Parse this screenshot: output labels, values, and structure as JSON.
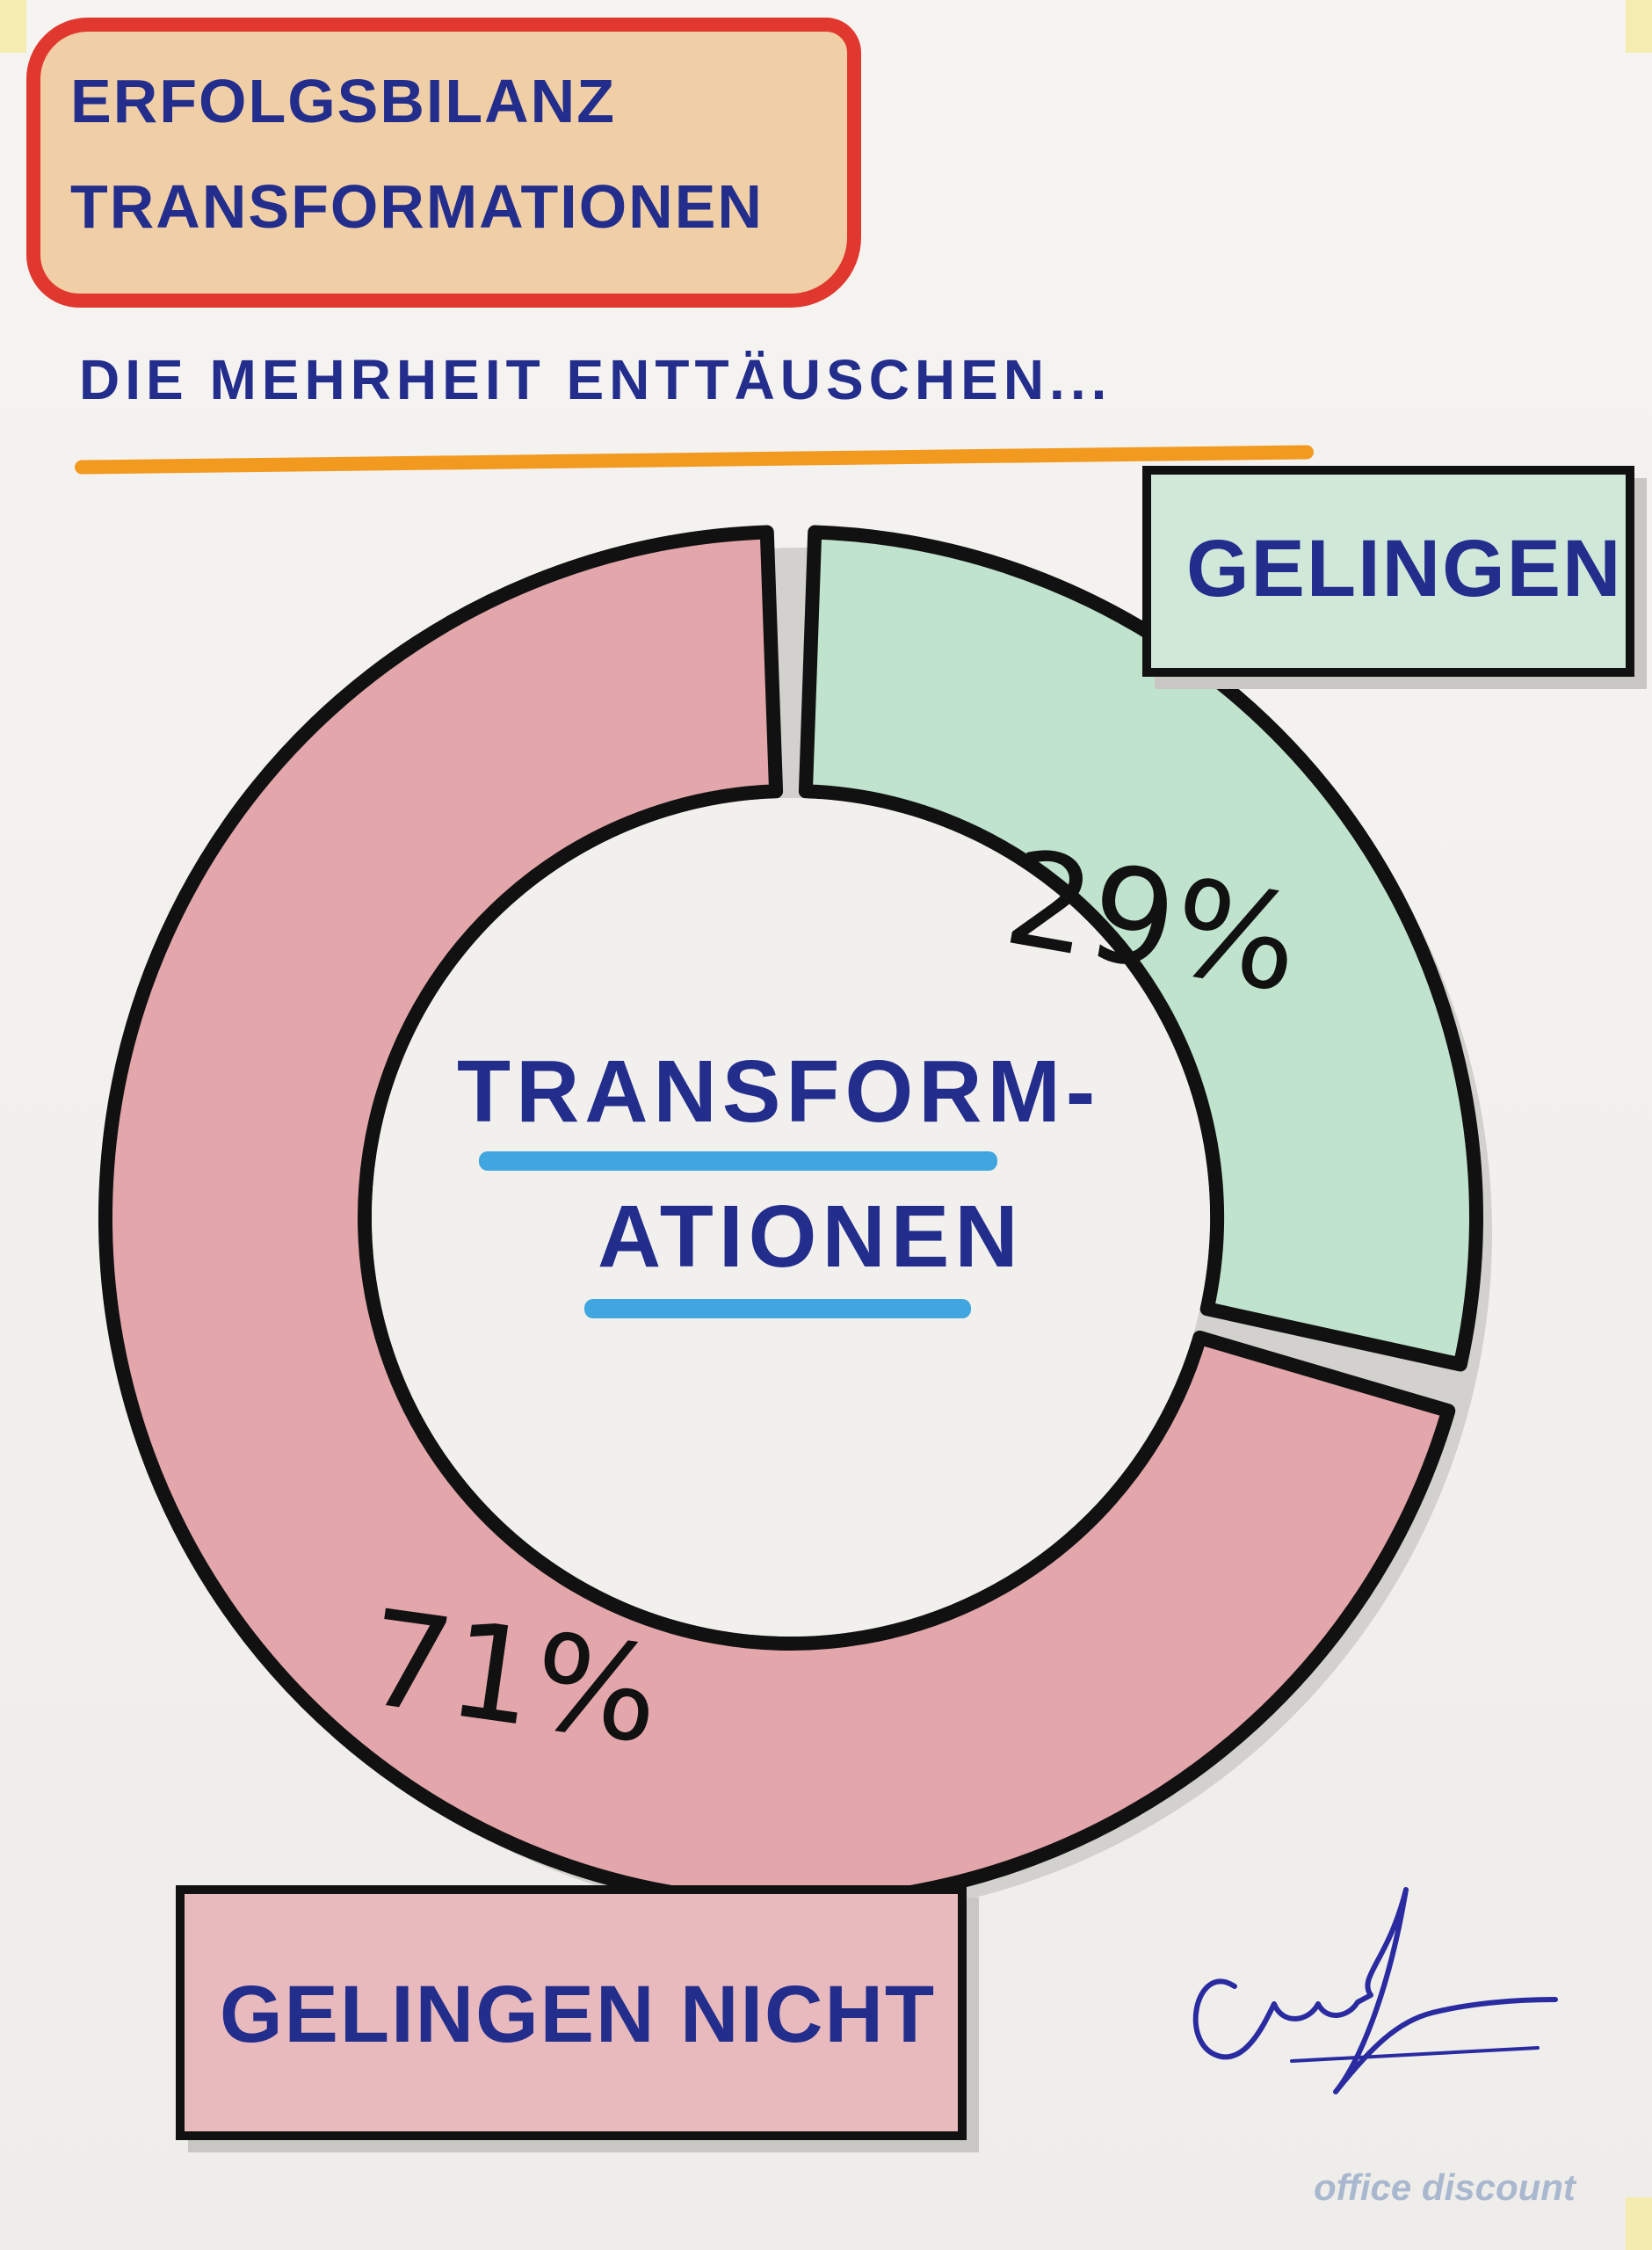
{
  "header": {
    "title_line1": "Erfolgsbilanz",
    "title_line2": "Transformationen",
    "subtitle": "Die Mehrheit enttäuschen..."
  },
  "center_label": {
    "line1": "Transform-",
    "line2": "ationen"
  },
  "labels": {
    "success": "Gelingen",
    "failure": "Gelingen nicht"
  },
  "chart_data": {
    "type": "pie",
    "title": "Erfolgsbilanz Transformationen",
    "subtitle": "Die Mehrheit enttäuschen...",
    "categories": [
      "Gelingen",
      "Gelingen nicht"
    ],
    "values": [
      29,
      71
    ],
    "value_labels": [
      "29%",
      "71%"
    ],
    "colors": [
      "#bfe3cc",
      "#e3a6ab"
    ],
    "center_text": "Transformationen",
    "donut": true,
    "start": "top",
    "direction": "clockwise"
  },
  "brand": "office discount"
}
